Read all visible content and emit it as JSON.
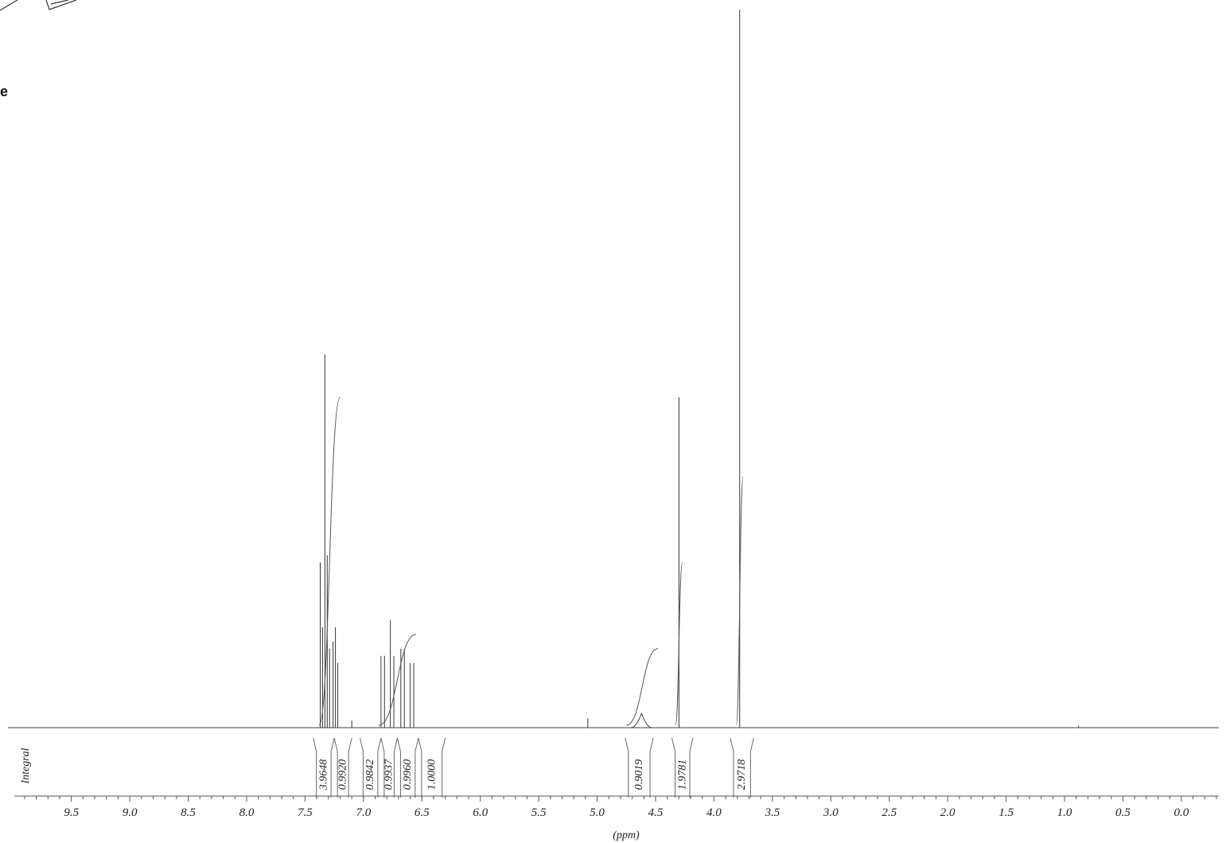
{
  "corner_text": "e",
  "chart_data": {
    "type": "line",
    "title": "",
    "xlabel": "(ppm)",
    "ylabel": "",
    "integral_axis_label": "Integral",
    "x_reversed": true,
    "xlim": [
      10.0,
      -0.3
    ],
    "x_ticks": [
      9.5,
      9.0,
      8.5,
      8.0,
      7.5,
      7.0,
      6.5,
      6.0,
      5.5,
      5.0,
      4.5,
      4.0,
      3.5,
      3.0,
      2.5,
      2.0,
      1.5,
      1.0,
      0.5,
      0.0
    ],
    "x_tick_labels": [
      "9.5",
      "9.0",
      "8.5",
      "8.0",
      "7.5",
      "7.0",
      "6.5",
      "6.0",
      "5.5",
      "5.0",
      "4.5",
      "4.0",
      "3.5",
      "3.0",
      "2.5",
      "2.0",
      "1.5",
      "1.0",
      "0.5",
      "0.0"
    ],
    "peaks": [
      {
        "ppm": 7.37,
        "intensity": 0.23
      },
      {
        "ppm": 7.35,
        "intensity": 0.14
      },
      {
        "ppm": 7.33,
        "intensity": 0.52
      },
      {
        "ppm": 7.31,
        "intensity": 0.24
      },
      {
        "ppm": 7.29,
        "intensity": 0.11
      },
      {
        "ppm": 7.26,
        "intensity": 0.12
      },
      {
        "ppm": 7.24,
        "intensity": 0.14
      },
      {
        "ppm": 7.22,
        "intensity": 0.09
      },
      {
        "ppm": 7.1,
        "intensity": 0.01
      },
      {
        "ppm": 6.85,
        "intensity": 0.1
      },
      {
        "ppm": 6.82,
        "intensity": 0.1
      },
      {
        "ppm": 6.77,
        "intensity": 0.15
      },
      {
        "ppm": 6.74,
        "intensity": 0.1
      },
      {
        "ppm": 6.68,
        "intensity": 0.11
      },
      {
        "ppm": 6.65,
        "intensity": 0.11
      },
      {
        "ppm": 6.6,
        "intensity": 0.09
      },
      {
        "ppm": 6.57,
        "intensity": 0.09
      },
      {
        "ppm": 5.08,
        "intensity": 0.013
      },
      {
        "ppm": 4.3,
        "intensity": 0.46
      },
      {
        "ppm": 3.78,
        "intensity": 1.0
      },
      {
        "ppm": 0.88,
        "intensity": 0.003
      }
    ],
    "broad_peaks": [
      {
        "ppm": 4.62,
        "intensity": 0.02,
        "width": 0.09
      }
    ],
    "integral_curves": [
      {
        "from": 7.38,
        "to": 7.2,
        "height": 0.46
      },
      {
        "from": 6.87,
        "to": 6.55,
        "height": 0.13
      },
      {
        "from": 4.75,
        "to": 4.48,
        "height": 0.11
      },
      {
        "from": 4.33,
        "to": 4.27,
        "height": 0.23
      },
      {
        "from": 3.81,
        "to": 3.75,
        "height": 0.35
      }
    ],
    "integrals": [
      {
        "value": "3.9648",
        "from": 7.43,
        "to": 7.25
      },
      {
        "value": "0.9920",
        "from": 7.25,
        "to": 7.1
      },
      {
        "value": "0.9842",
        "from": 7.03,
        "to": 6.85
      },
      {
        "value": "0.9937",
        "from": 6.85,
        "to": 6.71
      },
      {
        "value": "0.9960",
        "from": 6.71,
        "to": 6.53
      },
      {
        "value": "1.0000",
        "from": 6.53,
        "to": 6.3
      },
      {
        "value": "0.9019",
        "from": 4.76,
        "to": 4.52
      },
      {
        "value": "1.9781",
        "from": 4.36,
        "to": 4.18
      },
      {
        "value": "2.9718",
        "from": 3.86,
        "to": 3.66
      }
    ]
  }
}
